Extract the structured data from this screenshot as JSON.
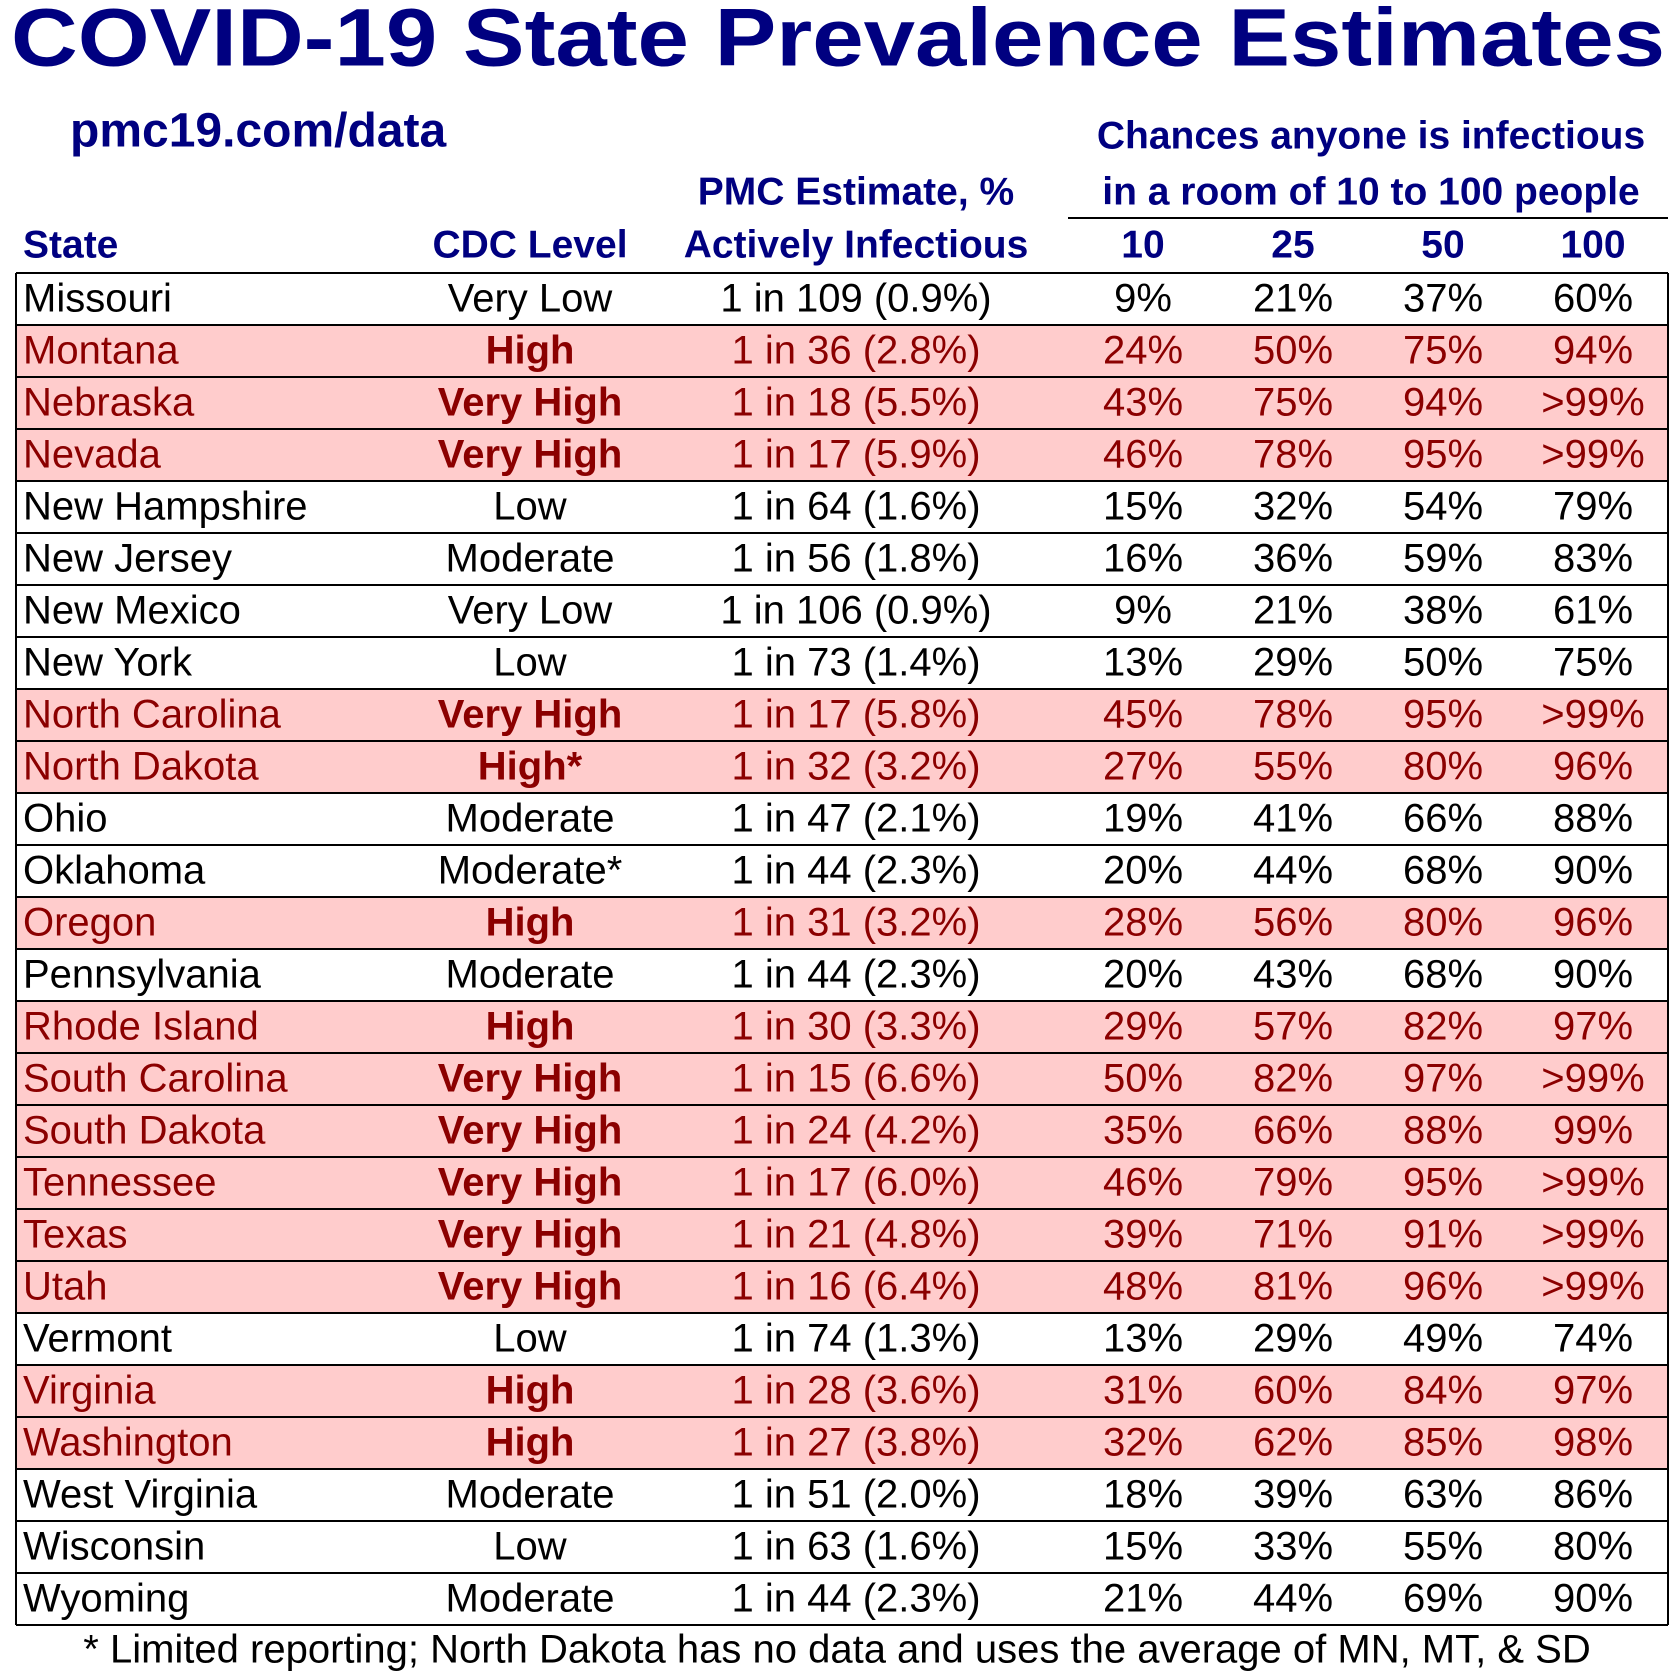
{
  "header": {
    "title": "COVID-19 State Prevalence Estimates",
    "subtitle": "pmc19.com/data",
    "estimate_heading": "PMC Estimate, %",
    "chances_heading": [
      "Chances anyone is infectious",
      "in a room of 10 to 100 people"
    ]
  },
  "table": {
    "columns": [
      "State",
      "CDC Level",
      "Actively Infectious",
      "10",
      "25",
      "50",
      "100"
    ],
    "rows": [
      {
        "cells": [
          "Missouri",
          "Very Low",
          "1 in 109 (0.9%)",
          "9%",
          "21%",
          "37%",
          "60%"
        ],
        "highlight": false
      },
      {
        "cells": [
          "Montana",
          "High",
          "1 in 36 (2.8%)",
          "24%",
          "50%",
          "75%",
          "94%"
        ],
        "highlight": true
      },
      {
        "cells": [
          "Nebraska",
          "Very High",
          "1 in 18 (5.5%)",
          "43%",
          "75%",
          "94%",
          ">99%"
        ],
        "highlight": true
      },
      {
        "cells": [
          "Nevada",
          "Very High",
          "1 in 17 (5.9%)",
          "46%",
          "78%",
          "95%",
          ">99%"
        ],
        "highlight": true
      },
      {
        "cells": [
          "New Hampshire",
          "Low",
          "1 in 64 (1.6%)",
          "15%",
          "32%",
          "54%",
          "79%"
        ],
        "highlight": false
      },
      {
        "cells": [
          "New Jersey",
          "Moderate",
          "1 in 56 (1.8%)",
          "16%",
          "36%",
          "59%",
          "83%"
        ],
        "highlight": false
      },
      {
        "cells": [
          "New Mexico",
          "Very Low",
          "1 in 106 (0.9%)",
          "9%",
          "21%",
          "38%",
          "61%"
        ],
        "highlight": false
      },
      {
        "cells": [
          "New York",
          "Low",
          "1 in 73 (1.4%)",
          "13%",
          "29%",
          "50%",
          "75%"
        ],
        "highlight": false
      },
      {
        "cells": [
          "North Carolina",
          "Very High",
          "1 in 17 (5.8%)",
          "45%",
          "78%",
          "95%",
          ">99%"
        ],
        "highlight": true
      },
      {
        "cells": [
          "North Dakota",
          "High*",
          "1 in 32 (3.2%)",
          "27%",
          "55%",
          "80%",
          "96%"
        ],
        "highlight": true
      },
      {
        "cells": [
          "Ohio",
          "Moderate",
          "1 in 47 (2.1%)",
          "19%",
          "41%",
          "66%",
          "88%"
        ],
        "highlight": false
      },
      {
        "cells": [
          "Oklahoma",
          "Moderate*",
          "1 in 44 (2.3%)",
          "20%",
          "44%",
          "68%",
          "90%"
        ],
        "highlight": false
      },
      {
        "cells": [
          "Oregon",
          "High",
          "1 in 31 (3.2%)",
          "28%",
          "56%",
          "80%",
          "96%"
        ],
        "highlight": true
      },
      {
        "cells": [
          "Pennsylvania",
          "Moderate",
          "1 in 44 (2.3%)",
          "20%",
          "43%",
          "68%",
          "90%"
        ],
        "highlight": false
      },
      {
        "cells": [
          "Rhode Island",
          "High",
          "1 in 30 (3.3%)",
          "29%",
          "57%",
          "82%",
          "97%"
        ],
        "highlight": true
      },
      {
        "cells": [
          "South Carolina",
          "Very High",
          "1 in 15 (6.6%)",
          "50%",
          "82%",
          "97%",
          ">99%"
        ],
        "highlight": true
      },
      {
        "cells": [
          "South Dakota",
          "Very High",
          "1 in 24 (4.2%)",
          "35%",
          "66%",
          "88%",
          "99%"
        ],
        "highlight": true
      },
      {
        "cells": [
          "Tennessee",
          "Very High",
          "1 in 17 (6.0%)",
          "46%",
          "79%",
          "95%",
          ">99%"
        ],
        "highlight": true
      },
      {
        "cells": [
          "Texas",
          "Very High",
          "1 in 21 (4.8%)",
          "39%",
          "71%",
          "91%",
          ">99%"
        ],
        "highlight": true
      },
      {
        "cells": [
          "Utah",
          "Very High",
          "1 in 16 (6.4%)",
          "48%",
          "81%",
          "96%",
          ">99%"
        ],
        "highlight": true
      },
      {
        "cells": [
          "Vermont",
          "Low",
          "1 in 74 (1.3%)",
          "13%",
          "29%",
          "49%",
          "74%"
        ],
        "highlight": false
      },
      {
        "cells": [
          "Virginia",
          "High",
          "1 in 28 (3.6%)",
          "31%",
          "60%",
          "84%",
          "97%"
        ],
        "highlight": true
      },
      {
        "cells": [
          "Washington",
          "High",
          "1 in 27 (3.8%)",
          "32%",
          "62%",
          "85%",
          "98%"
        ],
        "highlight": true
      },
      {
        "cells": [
          "West Virginia",
          "Moderate",
          "1 in 51 (2.0%)",
          "18%",
          "39%",
          "63%",
          "86%"
        ],
        "highlight": false
      },
      {
        "cells": [
          "Wisconsin",
          "Low",
          "1 in 63 (1.6%)",
          "15%",
          "33%",
          "55%",
          "80%"
        ],
        "highlight": false
      },
      {
        "cells": [
          "Wyoming",
          "Moderate",
          "1 in 44 (2.3%)",
          "21%",
          "44%",
          "69%",
          "90%"
        ],
        "highlight": false
      }
    ]
  },
  "footnote": "* Limited reporting; North Dakota has no data and uses the average of MN, MT, & SD"
}
